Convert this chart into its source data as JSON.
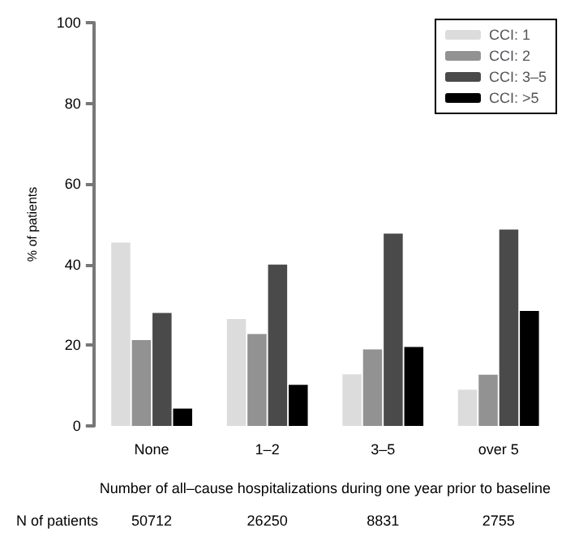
{
  "chart_data": {
    "type": "bar",
    "xlabel": "Number of all–cause hospitalizations during one year prior to baseline",
    "ylabel": "% of patients",
    "categories": [
      "None",
      "1–2",
      "3–5",
      "over 5"
    ],
    "series": [
      {
        "name": "CCI: 1",
        "color": "#dcdcdc",
        "values": [
          45.5,
          26.5,
          12.8,
          9
        ]
      },
      {
        "name": "CCI: 2",
        "color": "#929292",
        "values": [
          21.3,
          22.8,
          19,
          12.7
        ]
      },
      {
        "name": "CCI: 3–5",
        "color": "#4a4a4a",
        "values": [
          28,
          40,
          47.7,
          48.7
        ]
      },
      {
        "name": "CCI: >5",
        "color": "#000000",
        "values": [
          4.3,
          10.2,
          19.6,
          28.5
        ]
      }
    ],
    "ylim": [
      0,
      100
    ],
    "yticks": [
      0,
      20,
      40,
      60,
      80,
      100
    ],
    "grid": false,
    "legend": "top right",
    "annotations": [
      "N of patients",
      "50712",
      "26250",
      "8831",
      "2755"
    ]
  }
}
